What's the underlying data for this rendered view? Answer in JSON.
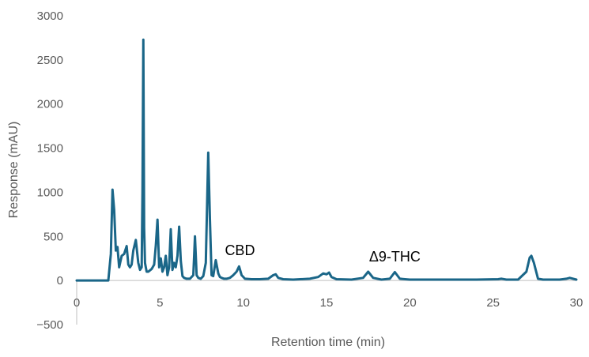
{
  "chart_data": {
    "type": "line",
    "title": "",
    "xlabel": "Retention time (min)",
    "ylabel": "Response (mAU)",
    "xlim": [
      0,
      30
    ],
    "ylim": [
      -500,
      3000
    ],
    "x_ticks": [
      "0",
      "5",
      "10",
      "15",
      "20",
      "25",
      "30"
    ],
    "y_ticks": [
      "−500",
      "0",
      "500",
      "1000",
      "1500",
      "2000",
      "2500",
      "3000"
    ],
    "grid": false,
    "legend": "none",
    "line_color": "#1a6688",
    "annotations": [
      {
        "text": "CBD",
        "x": 9.8,
        "y": 180
      },
      {
        "text": "Δ9-THC",
        "x": 19.1,
        "y": 110
      }
    ],
    "series": [
      {
        "x": [
          0,
          1.9,
          2.05,
          2.15,
          2.25,
          2.35,
          2.45,
          2.55,
          2.7,
          2.85,
          3.0,
          3.1,
          3.2,
          3.3,
          3.4,
          3.55,
          3.7,
          3.8,
          3.9,
          3.95,
          4.0,
          4.05,
          4.1,
          4.15,
          4.2,
          4.3,
          4.5,
          4.65,
          4.75,
          4.85,
          4.95,
          5.05,
          5.15,
          5.25,
          5.35,
          5.45,
          5.55,
          5.65,
          5.75,
          5.85,
          5.95,
          6.05,
          6.15,
          6.25,
          6.35,
          6.45,
          6.6,
          6.8,
          7.0,
          7.1,
          7.2,
          7.3,
          7.45,
          7.6,
          7.75,
          7.9,
          8.0,
          8.1,
          8.2,
          8.35,
          8.5,
          8.6,
          8.7,
          8.85,
          9.0,
          9.2,
          9.4,
          9.6,
          9.75,
          9.9,
          10.1,
          10.5,
          11.0,
          11.5,
          11.8,
          11.95,
          12.1,
          12.4,
          13.0,
          14.0,
          14.5,
          14.8,
          15.0,
          15.15,
          15.3,
          15.6,
          16.5,
          17.2,
          17.5,
          17.8,
          18.3,
          18.8,
          19.1,
          19.4,
          20.0,
          22.0,
          24.0,
          25.3,
          25.5,
          25.8,
          26.5,
          27.0,
          27.2,
          27.3,
          27.45,
          27.7,
          28.0,
          29.0,
          29.4,
          29.6,
          30.0
        ],
        "y": [
          0,
          0,
          300,
          1030,
          800,
          340,
          380,
          150,
          280,
          300,
          390,
          180,
          150,
          180,
          340,
          460,
          200,
          120,
          150,
          1000,
          2730,
          600,
          200,
          150,
          100,
          100,
          130,
          180,
          400,
          690,
          150,
          250,
          100,
          150,
          280,
          60,
          150,
          580,
          120,
          200,
          150,
          280,
          610,
          220,
          50,
          30,
          20,
          20,
          60,
          500,
          60,
          30,
          20,
          50,
          200,
          1450,
          700,
          60,
          50,
          230,
          80,
          40,
          30,
          20,
          20,
          30,
          60,
          100,
          160,
          60,
          20,
          15,
          15,
          20,
          60,
          70,
          30,
          15,
          10,
          20,
          40,
          80,
          70,
          90,
          40,
          15,
          10,
          30,
          100,
          30,
          10,
          20,
          95,
          20,
          10,
          10,
          10,
          15,
          20,
          10,
          10,
          100,
          260,
          280,
          200,
          20,
          10,
          10,
          20,
          30,
          10
        ]
      }
    ]
  }
}
